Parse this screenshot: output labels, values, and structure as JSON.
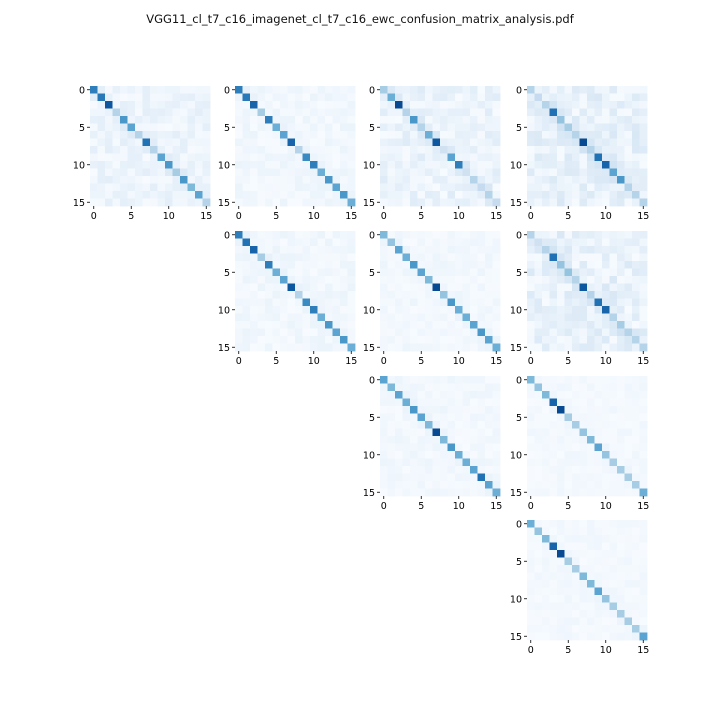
{
  "page": {
    "title": "VGG11_cl_t7_c16_imagenet_cl_t7_c16_ewc_confusion_matrix_analysis.pdf"
  },
  "chart_data": {
    "type": "heatmap",
    "title": "VGG11_cl_t7_c16_imagenet_cl_t7_c16_ewc_confusion_matrix_analysis.pdf",
    "colormap": "Blues",
    "matrix_size": 16,
    "tick_labels": [
      "0",
      "5",
      "10",
      "15"
    ],
    "tick_values": [
      0,
      5,
      10,
      15
    ],
    "grid_rows": 4,
    "grid_cols": 4,
    "panels": [
      {
        "row": 0,
        "col": 0,
        "intensity": [
          0.7,
          0.72,
          0.85,
          0.3,
          0.6,
          0.55,
          0.3,
          0.75,
          0.3,
          0.55,
          0.6,
          0.35,
          0.6,
          0.45,
          0.55,
          0.3
        ],
        "noise": 0.1
      },
      {
        "row": 0,
        "col": 1,
        "intensity": [
          0.7,
          0.72,
          0.8,
          0.35,
          0.7,
          0.5,
          0.55,
          0.8,
          0.3,
          0.65,
          0.7,
          0.5,
          0.6,
          0.55,
          0.6,
          0.5
        ],
        "noise": 0.06
      },
      {
        "row": 0,
        "col": 2,
        "intensity": [
          0.35,
          0.5,
          0.9,
          0.3,
          0.6,
          0.3,
          0.5,
          0.85,
          0.2,
          0.55,
          0.7,
          0.2,
          0.3,
          0.25,
          0.3,
          0.25
        ],
        "noise": 0.12
      },
      {
        "row": 0,
        "col": 3,
        "intensity": [
          0.3,
          0.25,
          0.3,
          0.75,
          0.4,
          0.35,
          0.3,
          0.9,
          0.3,
          0.75,
          0.8,
          0.55,
          0.6,
          0.3,
          0.3,
          0.3
        ],
        "noise": 0.15
      },
      {
        "row": 1,
        "col": 1,
        "intensity": [
          0.7,
          0.75,
          0.8,
          0.35,
          0.7,
          0.5,
          0.55,
          0.85,
          0.3,
          0.65,
          0.7,
          0.5,
          0.6,
          0.55,
          0.6,
          0.5
        ],
        "noise": 0.06
      },
      {
        "row": 1,
        "col": 2,
        "intensity": [
          0.45,
          0.4,
          0.55,
          0.5,
          0.6,
          0.55,
          0.45,
          0.9,
          0.4,
          0.6,
          0.5,
          0.5,
          0.55,
          0.6,
          0.55,
          0.5
        ],
        "noise": 0.05
      },
      {
        "row": 1,
        "col": 3,
        "intensity": [
          0.3,
          0.2,
          0.3,
          0.75,
          0.4,
          0.4,
          0.3,
          0.85,
          0.3,
          0.75,
          0.8,
          0.3,
          0.35,
          0.3,
          0.3,
          0.3
        ],
        "noise": 0.15
      },
      {
        "row": 2,
        "col": 2,
        "intensity": [
          0.55,
          0.45,
          0.55,
          0.5,
          0.6,
          0.55,
          0.45,
          0.9,
          0.45,
          0.6,
          0.5,
          0.5,
          0.55,
          0.75,
          0.55,
          0.5
        ],
        "noise": 0.05
      },
      {
        "row": 2,
        "col": 3,
        "intensity": [
          0.45,
          0.4,
          0.45,
          0.8,
          0.9,
          0.35,
          0.35,
          0.4,
          0.45,
          0.55,
          0.4,
          0.35,
          0.35,
          0.35,
          0.35,
          0.5
        ],
        "noise": 0.04
      },
      {
        "row": 3,
        "col": 3,
        "intensity": [
          0.5,
          0.4,
          0.45,
          0.8,
          0.9,
          0.35,
          0.35,
          0.45,
          0.45,
          0.55,
          0.4,
          0.35,
          0.35,
          0.35,
          0.35,
          0.55
        ],
        "noise": 0.04
      }
    ]
  }
}
